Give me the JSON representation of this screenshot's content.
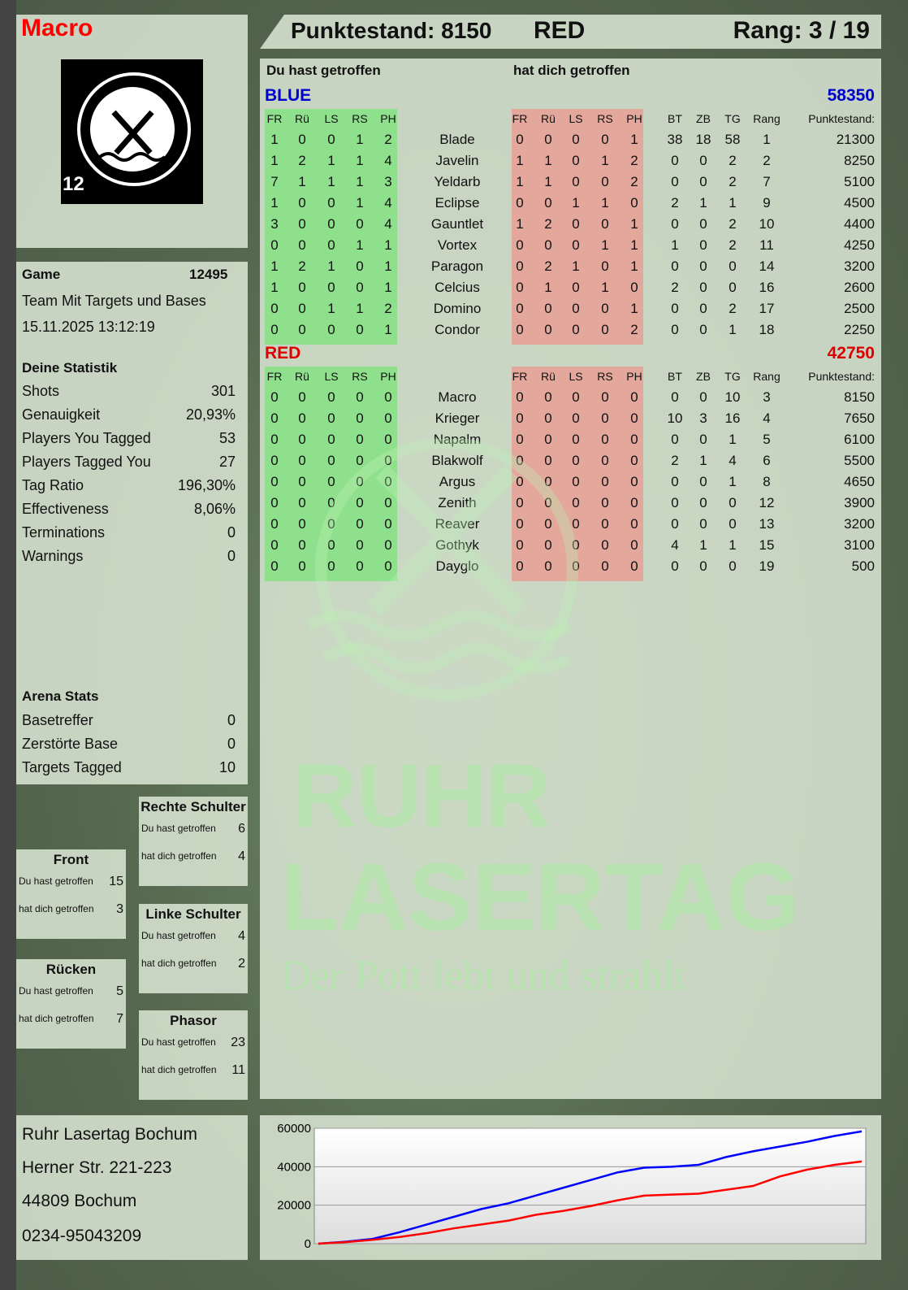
{
  "player": {
    "name": "Macro",
    "name_color": "#ff0000"
  },
  "header": {
    "score_label": "Punktestand: 8150",
    "team": "RED",
    "rank_label": "Rang: 3 / 19"
  },
  "logo": {
    "text_top": "RUHR",
    "text_bottom": "LASERTAG",
    "badge": "12"
  },
  "watermark": {
    "line1": "RUHR",
    "line2": "LASERTAG",
    "slogan": "Der Pott lebt und strahlt"
  },
  "game": {
    "label": "Game",
    "number": "12495",
    "mode": "Team Mit Targets und Bases",
    "datetime": "15.11.2025 13:12:19"
  },
  "stats": {
    "title": "Deine Statistik",
    "rows": [
      {
        "label": "Shots",
        "value": "301"
      },
      {
        "label": "Genauigkeit",
        "value": "20,93%"
      },
      {
        "label": "Players You Tagged",
        "value": "53"
      },
      {
        "label": "Players Tagged You",
        "value": "27"
      },
      {
        "label": "Tag Ratio",
        "value": "196,30%"
      },
      {
        "label": "Effectiveness",
        "value": "8,06%"
      },
      {
        "label": "Terminations",
        "value": "0"
      },
      {
        "label": "Warnings",
        "value": "0"
      }
    ]
  },
  "arena": {
    "title": "Arena Stats",
    "rows": [
      {
        "label": "Basetreffer",
        "value": "0"
      },
      {
        "label": "Zerstörte Base",
        "value": "0"
      },
      {
        "label": "Targets Tagged",
        "value": "10"
      }
    ]
  },
  "hitboxes": [
    {
      "title": "Rechte Schulter",
      "you_hit_label": "Du hast getroffen",
      "you_hit": "6",
      "hit_you_label": "hat dich getroffen",
      "hit_you": "4"
    },
    {
      "title": "Front",
      "you_hit_label": "Du hast getroffen",
      "you_hit": "15",
      "hit_you_label": "hat dich getroffen",
      "hit_you": "3"
    },
    {
      "title": "Linke Schulter",
      "you_hit_label": "Du hast getroffen",
      "you_hit": "4",
      "hit_you_label": "hat dich getroffen",
      "hit_you": "2"
    },
    {
      "title": "Rücken",
      "you_hit_label": "Du hast getroffen",
      "you_hit": "5",
      "hit_you_label": "hat dich getroffen",
      "hit_you": "7"
    },
    {
      "title": "Phasor",
      "you_hit_label": "Du hast getroffen",
      "you_hit": "23",
      "hit_you_label": "hat dich getroffen",
      "hit_you": "11"
    }
  ],
  "address": {
    "lines": [
      "Ruhr Lasertag Bochum",
      "Herner Str. 221-223",
      "44809 Bochum",
      "0234-95043209"
    ]
  },
  "table": {
    "you_hit_title": "Du hast getroffen",
    "hit_you_title": "hat dich getroffen",
    "hit_columns": [
      "FR",
      "Rü",
      "LS",
      "RS",
      "PH"
    ],
    "stat_columns": [
      "BT",
      "ZB",
      "TG",
      "Rang"
    ],
    "score_column": "Punktestand:",
    "colors": {
      "green": "#8fe08c",
      "red": "#e3a79c"
    },
    "teams": [
      {
        "name": "BLUE",
        "total": "58350",
        "color": "#0000cc",
        "players": [
          {
            "name": "Blade",
            "you_hit": [
              1,
              0,
              0,
              1,
              2
            ],
            "hit_you": [
              0,
              0,
              0,
              0,
              1
            ],
            "bt": 38,
            "zb": 18,
            "tg": 58,
            "rang": 1,
            "score": 21300
          },
          {
            "name": "Javelin",
            "you_hit": [
              1,
              2,
              1,
              1,
              4
            ],
            "hit_you": [
              1,
              1,
              0,
              1,
              2
            ],
            "bt": 0,
            "zb": 0,
            "tg": 2,
            "rang": 2,
            "score": 8250
          },
          {
            "name": "Yeldarb",
            "you_hit": [
              7,
              1,
              1,
              1,
              3
            ],
            "hit_you": [
              1,
              1,
              0,
              0,
              2
            ],
            "bt": 0,
            "zb": 0,
            "tg": 2,
            "rang": 7,
            "score": 5100
          },
          {
            "name": "Eclipse",
            "you_hit": [
              1,
              0,
              0,
              1,
              4
            ],
            "hit_you": [
              0,
              0,
              1,
              1,
              0
            ],
            "bt": 2,
            "zb": 1,
            "tg": 1,
            "rang": 9,
            "score": 4500
          },
          {
            "name": "Gauntlet",
            "you_hit": [
              3,
              0,
              0,
              0,
              4
            ],
            "hit_you": [
              1,
              2,
              0,
              0,
              1
            ],
            "bt": 0,
            "zb": 0,
            "tg": 2,
            "rang": 10,
            "score": 4400
          },
          {
            "name": "Vortex",
            "you_hit": [
              0,
              0,
              0,
              1,
              1
            ],
            "hit_you": [
              0,
              0,
              0,
              1,
              1
            ],
            "bt": 1,
            "zb": 0,
            "tg": 2,
            "rang": 11,
            "score": 4250
          },
          {
            "name": "Paragon",
            "you_hit": [
              1,
              2,
              1,
              0,
              1
            ],
            "hit_you": [
              0,
              2,
              1,
              0,
              1
            ],
            "bt": 0,
            "zb": 0,
            "tg": 0,
            "rang": 14,
            "score": 3200
          },
          {
            "name": "Celcius",
            "you_hit": [
              1,
              0,
              0,
              0,
              1
            ],
            "hit_you": [
              0,
              1,
              0,
              1,
              0
            ],
            "bt": 2,
            "zb": 0,
            "tg": 0,
            "rang": 16,
            "score": 2600
          },
          {
            "name": "Domino",
            "you_hit": [
              0,
              0,
              1,
              1,
              2
            ],
            "hit_you": [
              0,
              0,
              0,
              0,
              1
            ],
            "bt": 0,
            "zb": 0,
            "tg": 2,
            "rang": 17,
            "score": 2500
          },
          {
            "name": "Condor",
            "you_hit": [
              0,
              0,
              0,
              0,
              1
            ],
            "hit_you": [
              0,
              0,
              0,
              0,
              2
            ],
            "bt": 0,
            "zb": 0,
            "tg": 1,
            "rang": 18,
            "score": 2250
          }
        ]
      },
      {
        "name": "RED",
        "total": "42750",
        "color": "#dd0000",
        "players": [
          {
            "name": "Macro",
            "you_hit": [
              0,
              0,
              0,
              0,
              0
            ],
            "hit_you": [
              0,
              0,
              0,
              0,
              0
            ],
            "bt": 0,
            "zb": 0,
            "tg": 10,
            "rang": 3,
            "score": 8150
          },
          {
            "name": "Krieger",
            "you_hit": [
              0,
              0,
              0,
              0,
              0
            ],
            "hit_you": [
              0,
              0,
              0,
              0,
              0
            ],
            "bt": 10,
            "zb": 3,
            "tg": 16,
            "rang": 4,
            "score": 7650
          },
          {
            "name": "Napalm",
            "you_hit": [
              0,
              0,
              0,
              0,
              0
            ],
            "hit_you": [
              0,
              0,
              0,
              0,
              0
            ],
            "bt": 0,
            "zb": 0,
            "tg": 1,
            "rang": 5,
            "score": 6100
          },
          {
            "name": "Blakwolf",
            "you_hit": [
              0,
              0,
              0,
              0,
              0
            ],
            "hit_you": [
              0,
              0,
              0,
              0,
              0
            ],
            "bt": 2,
            "zb": 1,
            "tg": 4,
            "rang": 6,
            "score": 5500
          },
          {
            "name": "Argus",
            "you_hit": [
              0,
              0,
              0,
              0,
              0
            ],
            "hit_you": [
              0,
              0,
              0,
              0,
              0
            ],
            "bt": 0,
            "zb": 0,
            "tg": 1,
            "rang": 8,
            "score": 4650
          },
          {
            "name": "Zenith",
            "you_hit": [
              0,
              0,
              0,
              0,
              0
            ],
            "hit_you": [
              0,
              0,
              0,
              0,
              0
            ],
            "bt": 0,
            "zb": 0,
            "tg": 0,
            "rang": 12,
            "score": 3900
          },
          {
            "name": "Reaver",
            "you_hit": [
              0,
              0,
              0,
              0,
              0
            ],
            "hit_you": [
              0,
              0,
              0,
              0,
              0
            ],
            "bt": 0,
            "zb": 0,
            "tg": 0,
            "rang": 13,
            "score": 3200
          },
          {
            "name": "Gothyk",
            "you_hit": [
              0,
              0,
              0,
              0,
              0
            ],
            "hit_you": [
              0,
              0,
              0,
              0,
              0
            ],
            "bt": 4,
            "zb": 1,
            "tg": 1,
            "rang": 15,
            "score": 3100
          },
          {
            "name": "Dayglo",
            "you_hit": [
              0,
              0,
              0,
              0,
              0
            ],
            "hit_you": [
              0,
              0,
              0,
              0,
              0
            ],
            "bt": 0,
            "zb": 0,
            "tg": 0,
            "rang": 19,
            "score": 500
          }
        ]
      }
    ]
  },
  "chart_data": {
    "type": "line",
    "ylim": [
      0,
      60000
    ],
    "yticks": [
      "0",
      "20000",
      "40000",
      "60000"
    ],
    "grid": true,
    "xlabel": "",
    "ylabel": "",
    "x": [
      0,
      1,
      2,
      3,
      4,
      5,
      6,
      7,
      8,
      9,
      10,
      11,
      12,
      13,
      14,
      15,
      16,
      17,
      18,
      19,
      20
    ],
    "series": [
      {
        "color": "#0000ff",
        "values": [
          0,
          1000,
          2500,
          6000,
          10000,
          14000,
          18000,
          21000,
          25000,
          29000,
          33000,
          37000,
          39500,
          40000,
          41000,
          45000,
          48000,
          50500,
          53000,
          56000,
          58350
        ]
      },
      {
        "color": "#ff0000",
        "values": [
          0,
          800,
          2000,
          3500,
          5500,
          8000,
          10000,
          12000,
          15000,
          17000,
          19500,
          22500,
          25000,
          25500,
          26000,
          28000,
          30000,
          35000,
          38500,
          41000,
          42750
        ]
      }
    ]
  }
}
